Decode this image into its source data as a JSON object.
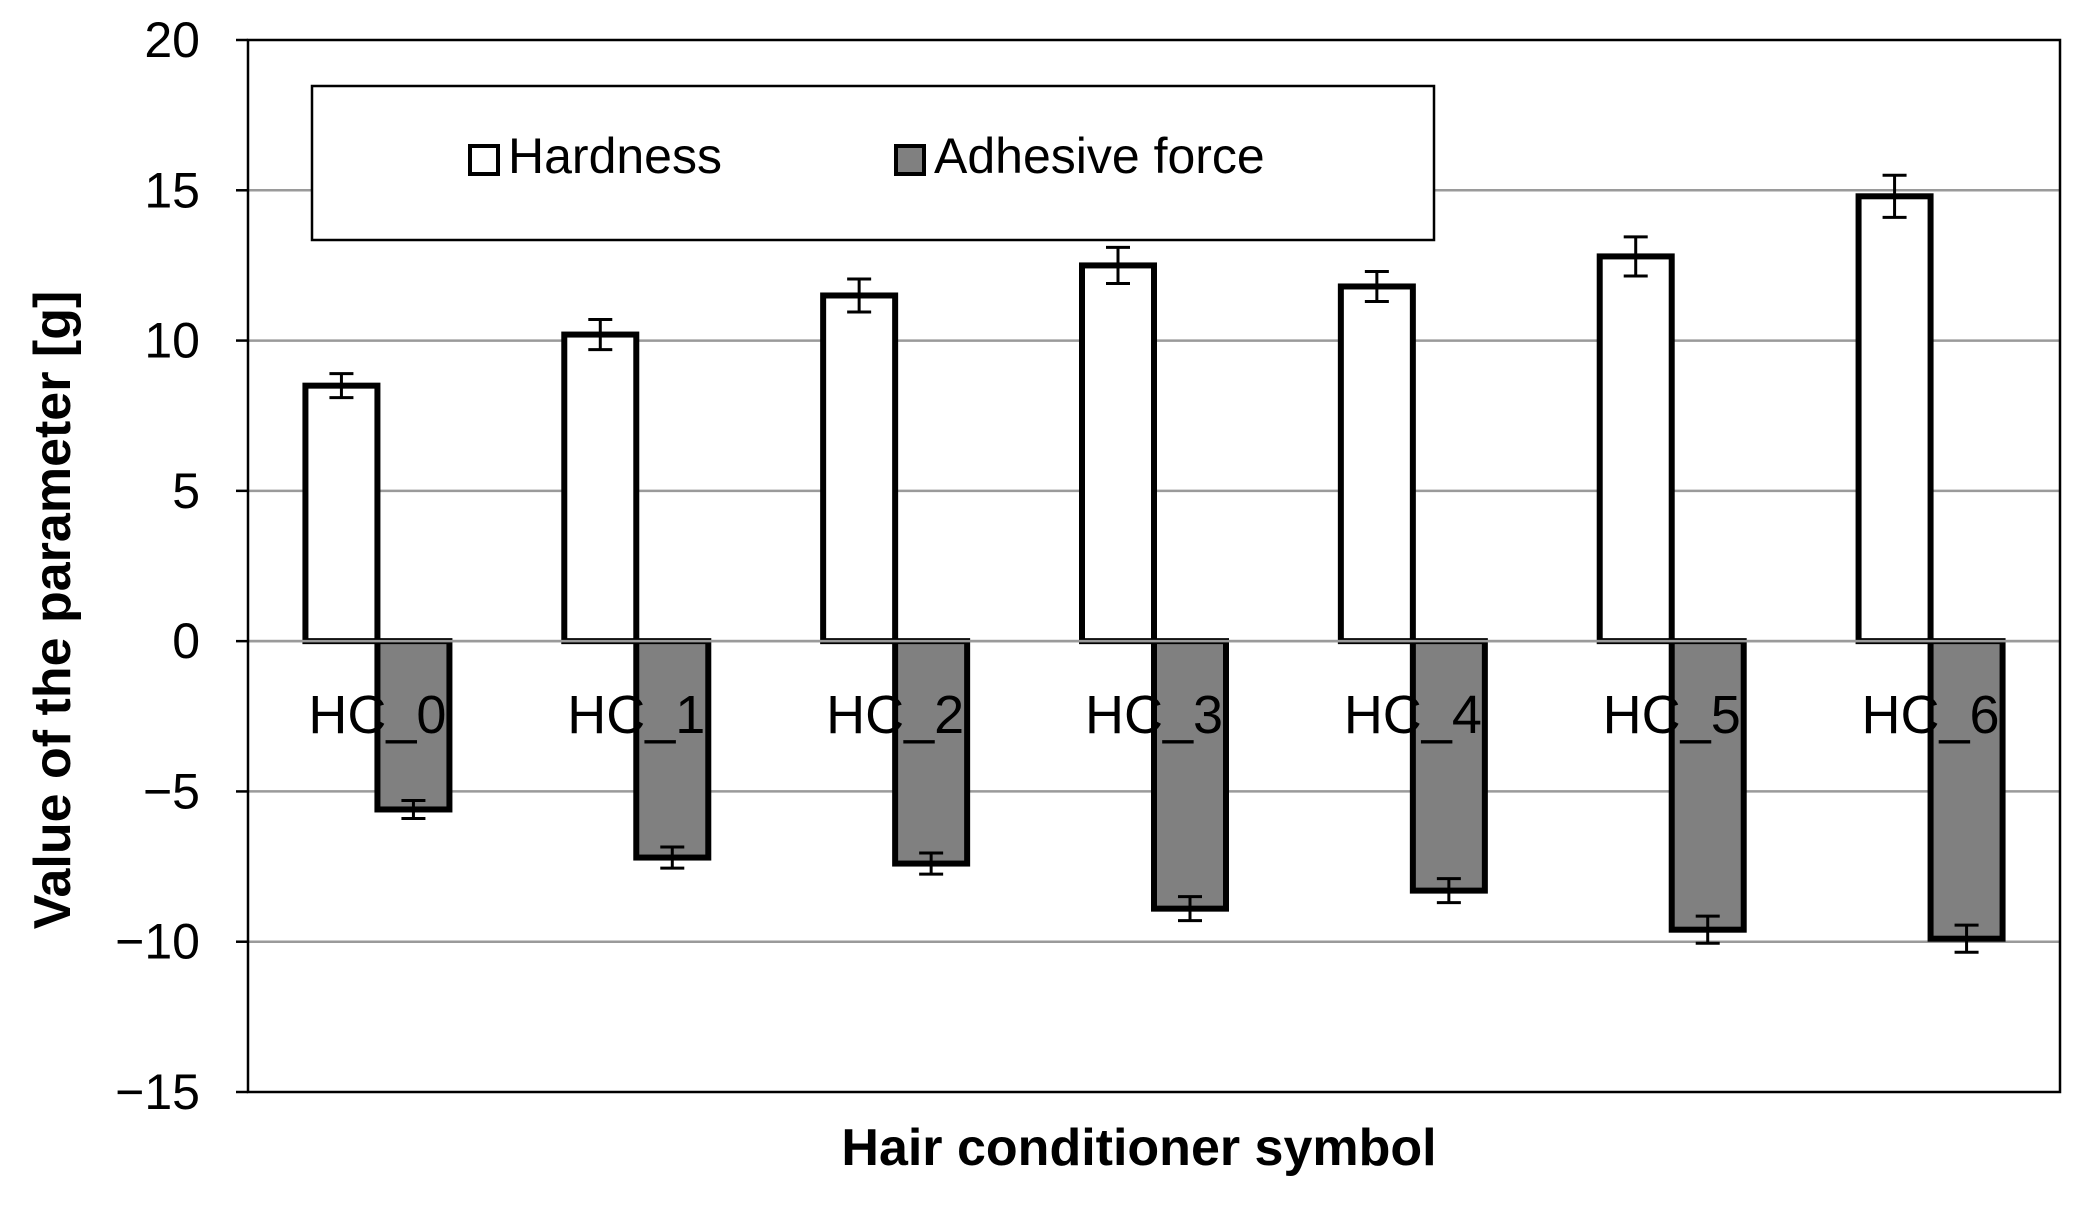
{
  "chart_data": {
    "type": "bar",
    "title": "",
    "xlabel": "Hair conditioner symbol",
    "ylabel": "Value of the parameter [g]",
    "ylim": [
      -15,
      20
    ],
    "yticks": [
      20,
      15,
      10,
      5,
      0,
      -5,
      -10,
      -15
    ],
    "ytick_labels": [
      "20",
      "15",
      "10",
      "5",
      "0",
      "−5",
      "−10",
      "−15"
    ],
    "grid": true,
    "legend_position": "top-left",
    "categories": [
      "HC_0",
      "HC_1",
      "HC_2",
      "HC_3",
      "HC_4",
      "HC_5",
      "HC_6"
    ],
    "series": [
      {
        "name": "Hardness",
        "color": "#ffffff",
        "values": [
          8.5,
          10.2,
          11.5,
          12.5,
          11.8,
          12.8,
          14.8
        ],
        "errors": [
          0.4,
          0.5,
          0.55,
          0.6,
          0.5,
          0.65,
          0.7
        ]
      },
      {
        "name": "Adhesive force",
        "color": "#808080",
        "values": [
          -5.6,
          -7.2,
          -7.4,
          -8.9,
          -8.3,
          -9.6,
          -9.9
        ],
        "errors": [
          0.3,
          0.35,
          0.35,
          0.4,
          0.4,
          0.45,
          0.45
        ]
      }
    ]
  }
}
